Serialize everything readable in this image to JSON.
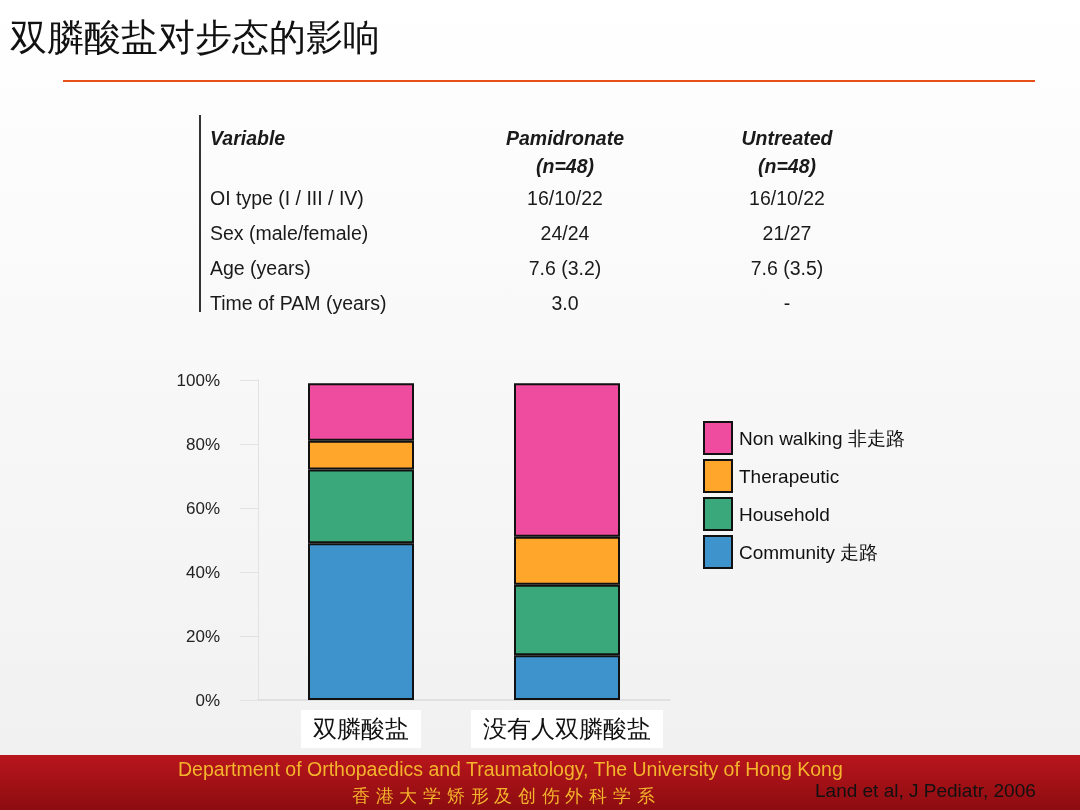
{
  "chart_data": [
    {
      "type": "other",
      "title": "双膦酸盐对步态的影响",
      "annotations": [
        "Variable",
        "Pamidronate (n=48)",
        "Untreated (n=48)",
        "OI type (I / III / IV)",
        "16/10/22",
        "16/10/22",
        "Sex (male/female)",
        "24/24",
        "21/27",
        "Age (years)",
        "7.6 (3.2)",
        "7.6 (3.5)",
        "Time of PAM (years)",
        "3.0",
        "-"
      ]
    },
    {
      "type": "bar",
      "stacked": true,
      "categories": [
        "双膦酸盐",
        "没有人双膦酸盐"
      ],
      "series": [
        {
          "name": "Community 走路",
          "color": "#3f93cc",
          "values": [
            49,
            14
          ]
        },
        {
          "name": "Household",
          "color": "#3aa87a",
          "values": [
            23,
            22
          ]
        },
        {
          "name": "Therapeutic",
          "color": "#ffa62b",
          "values": [
            9,
            15
          ]
        },
        {
          "name": "Non walking 非走路",
          "color": "#f04c9f",
          "values": [
            18,
            48
          ]
        }
      ],
      "ylim": [
        0,
        100
      ],
      "yticks": [
        {
          "value": 0,
          "label": "0%"
        },
        {
          "value": 20,
          "label": "20%"
        },
        {
          "value": 40,
          "label": "40%"
        },
        {
          "value": 60,
          "label": "60%"
        },
        {
          "value": 80,
          "label": "80%"
        },
        {
          "value": 100,
          "label": "100%"
        }
      ],
      "legend": "right",
      "grid": false,
      "annotations": [
        "Department of Orthopaedics and Traumatology, The University of Hong Kong",
        "香 港 大 学 矫 形 及 创 伤 外 科 学 系",
        "Land et al, J Pediatr, 2006"
      ]
    }
  ]
}
